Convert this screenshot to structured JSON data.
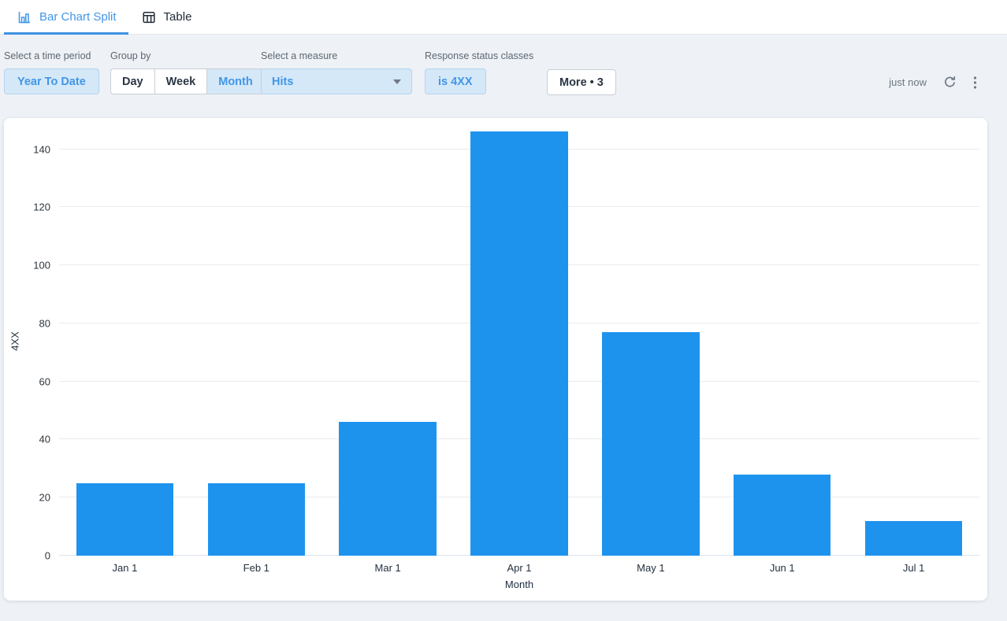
{
  "tabs": [
    {
      "label": "Bar Chart Split",
      "active": true
    },
    {
      "label": "Table",
      "active": false
    }
  ],
  "toolbar": {
    "time_period": {
      "label": "Select a time period",
      "value": "Year To Date"
    },
    "group_by": {
      "label": "Group by",
      "options": [
        "Day",
        "Week",
        "Month"
      ],
      "selected": "Month"
    },
    "measure": {
      "label": "Select a measure",
      "value": "Hits"
    },
    "status_classes": {
      "label": "Response status classes",
      "value": "is 4XX"
    },
    "more_button": "More • 3",
    "last_updated": "just now"
  },
  "chart_data": {
    "type": "bar",
    "title": "",
    "categories": [
      "Jan 1",
      "Feb 1",
      "Mar 1",
      "Apr 1",
      "May 1",
      "Jun 1",
      "Jul 1"
    ],
    "values": [
      25,
      25,
      46,
      146,
      77,
      28,
      12
    ],
    "xlabel": "Month",
    "ylabel": "4XX",
    "ylim": [
      0,
      148
    ],
    "yticks": [
      0,
      20,
      40,
      60,
      80,
      100,
      120,
      140
    ],
    "grid": true,
    "legend": false,
    "bar_color": "#1e93ee"
  },
  "colors": {
    "accent_blue": "#4196e8",
    "bar_blue": "#1e93ee",
    "selected_bg": "#d5e8f8",
    "page_bg": "#eef1f5"
  }
}
